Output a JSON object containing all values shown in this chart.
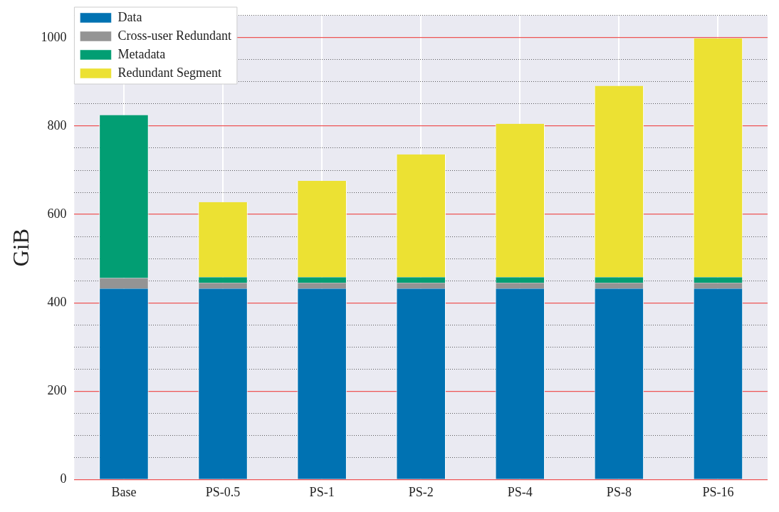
{
  "chart_data": {
    "type": "bar",
    "ylabel": "GiB",
    "stacked": true,
    "categories": [
      "Base",
      "PS-0.5",
      "PS-1",
      "PS-2",
      "PS-4",
      "PS-8",
      "PS-16"
    ],
    "series": [
      {
        "name": "Data",
        "color": "#0072b2",
        "values": [
          432,
          432,
          432,
          432,
          432,
          432,
          432
        ]
      },
      {
        "name": "Cross-user Redundant",
        "color": "#949494",
        "values": [
          24,
          13,
          13,
          13,
          13,
          13,
          13
        ]
      },
      {
        "name": "Metadata",
        "color": "#029e73",
        "values": [
          369,
          13,
          13,
          13,
          13,
          13,
          13
        ]
      },
      {
        "name": "Redundant Segment",
        "color": "#ece133",
        "values": [
          0,
          170,
          218,
          278,
          347,
          433,
          540
        ]
      }
    ],
    "ylim": [
      0,
      1050
    ],
    "yticks": [
      0,
      {
        "value": 50,
        "label": null
      },
      200,
      {
        "value": 100,
        "label": null
      },
      {
        "value": 150,
        "label": null
      },
      {
        "value": 250,
        "label": null
      },
      400,
      {
        "value": 300,
        "label": null
      },
      {
        "value": 350,
        "label": null
      },
      {
        "value": 450,
        "label": null
      },
      600,
      {
        "value": 500,
        "label": null
      },
      {
        "value": 550,
        "label": null
      },
      {
        "value": 650,
        "label": null
      },
      800,
      {
        "value": 700,
        "label": null
      },
      {
        "value": 750,
        "label": null
      },
      {
        "value": 850,
        "label": null
      },
      1000,
      {
        "value": 900,
        "label": null
      },
      {
        "value": 950,
        "label": null
      },
      {
        "value": 1050,
        "label": null
      }
    ],
    "grid": true,
    "legend": "top left"
  }
}
